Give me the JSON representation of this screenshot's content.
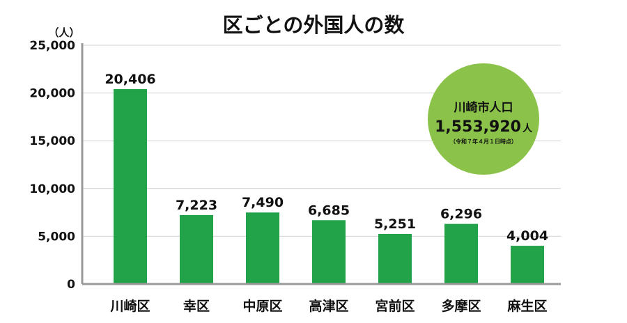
{
  "chart_data": {
    "type": "bar",
    "title": "区ごとの外国人の数",
    "unit": "（人）",
    "categories": [
      "川崎区",
      "幸区",
      "中原区",
      "高津区",
      "宮前区",
      "多摩区",
      "麻生区"
    ],
    "values": [
      20406,
      7223,
      7490,
      6685,
      5251,
      6296,
      4004
    ],
    "value_labels": [
      "20,406",
      "7,223",
      "7,490",
      "6,685",
      "5,251",
      "6,296",
      "4,004"
    ],
    "ylim": [
      0,
      25000
    ],
    "yticks": [
      0,
      5000,
      10000,
      15000,
      20000,
      25000
    ],
    "ytick_labels": [
      "0",
      "5,000",
      "10,000",
      "15,000",
      "20,000",
      "25,000"
    ],
    "grid": true,
    "bar_color": "#22A34A",
    "grid_color": "#d0d0d0",
    "axis_color": "#9a9a9a"
  },
  "badge": {
    "title": "川崎市人口",
    "value": "1,553,920",
    "unit": "人",
    "note": "（令和７年４月１日時点）",
    "color": "#8BC34A"
  }
}
